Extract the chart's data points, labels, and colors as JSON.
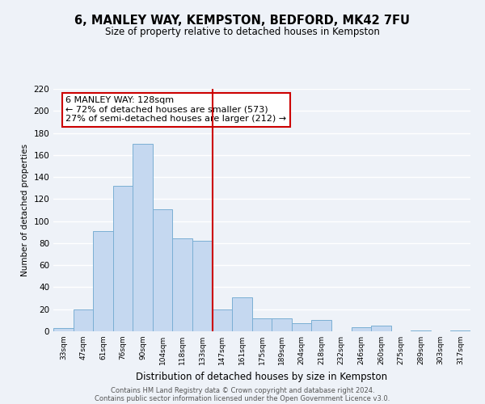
{
  "title": "6, MANLEY WAY, KEMPSTON, BEDFORD, MK42 7FU",
  "subtitle": "Size of property relative to detached houses in Kempston",
  "xlabel": "Distribution of detached houses by size in Kempston",
  "ylabel": "Number of detached properties",
  "bin_labels": [
    "33sqm",
    "47sqm",
    "61sqm",
    "76sqm",
    "90sqm",
    "104sqm",
    "118sqm",
    "133sqm",
    "147sqm",
    "161sqm",
    "175sqm",
    "189sqm",
    "204sqm",
    "218sqm",
    "232sqm",
    "246sqm",
    "260sqm",
    "275sqm",
    "289sqm",
    "303sqm",
    "317sqm"
  ],
  "bar_heights": [
    3,
    20,
    91,
    132,
    170,
    111,
    84,
    82,
    20,
    31,
    12,
    12,
    7,
    10,
    0,
    4,
    5,
    0,
    1,
    0,
    1
  ],
  "bar_color": "#c5d8f0",
  "bar_edge_color": "#7bafd4",
  "vline_index": 7,
  "vline_color": "#cc0000",
  "annotation_title": "6 MANLEY WAY: 128sqm",
  "annotation_line1": "← 72% of detached houses are smaller (573)",
  "annotation_line2": "27% of semi-detached houses are larger (212) →",
  "annotation_box_color": "#ffffff",
  "annotation_box_edge": "#cc0000",
  "ylim": [
    0,
    220
  ],
  "yticks": [
    0,
    20,
    40,
    60,
    80,
    100,
    120,
    140,
    160,
    180,
    200,
    220
  ],
  "footer1": "Contains HM Land Registry data © Crown copyright and database right 2024.",
  "footer2": "Contains public sector information licensed under the Open Government Licence v3.0.",
  "bg_color": "#eef2f8",
  "grid_color": "#ffffff"
}
